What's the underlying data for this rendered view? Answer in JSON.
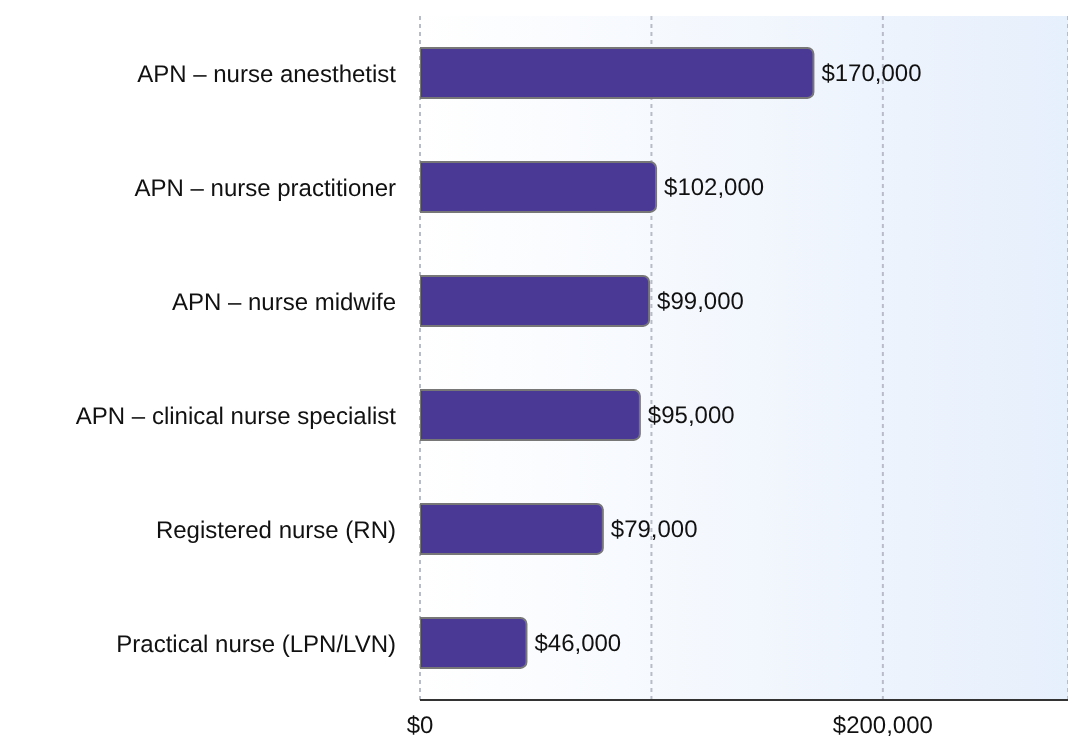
{
  "chart_data": {
    "type": "bar",
    "orientation": "horizontal",
    "categories": [
      "APN – nurse anesthetist",
      "APN – nurse practitioner",
      "APN – nurse midwife",
      "APN – clinical nurse specialist",
      "Registered nurse (RN)",
      "Practical nurse (LPN/LVN)"
    ],
    "values": [
      170000,
      102000,
      99000,
      95000,
      79000,
      46000
    ],
    "value_labels": [
      "$170,000",
      "$102,000",
      "$99,000",
      "$95,000",
      "$79,000",
      "$46,000"
    ],
    "color": "#4a3a96",
    "xlim": [
      0,
      280000
    ],
    "xticks": [
      {
        "value": 0,
        "label": "$0"
      },
      {
        "value": 100000,
        "label": null
      },
      {
        "value": 200000,
        "label": "$200,000"
      }
    ],
    "grid": "x"
  }
}
